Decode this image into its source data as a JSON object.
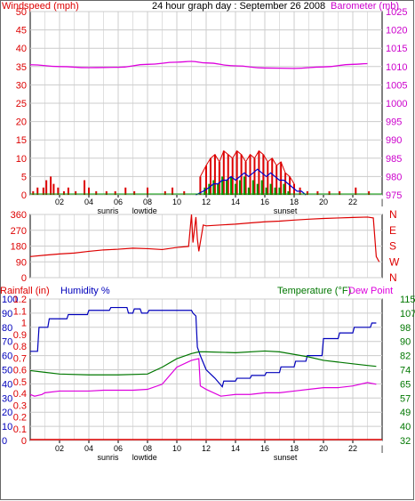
{
  "header": {
    "left_label": "Windspeed (mph)",
    "title": "24 hour graph day : September 26 2008",
    "right_label": "Barometer (mb)"
  },
  "colors": {
    "wind": "#dd0000",
    "gust": "#0000cc",
    "sun": "#009900",
    "baro": "#dd00dd",
    "temp": "#007700",
    "dew": "#dd00dd",
    "hum": "#0000bb",
    "grid": "#cccccc",
    "axis_left": "#dd0000",
    "axis_right": "#cc00cc"
  },
  "x_axis": {
    "ticks": [
      "02",
      "04",
      "06",
      "08",
      "10",
      "12",
      "14",
      "16",
      "18",
      "20",
      "22"
    ],
    "top_markers": [
      "sunris",
      "lowtide",
      "sunset"
    ],
    "bottom_markers": [
      "sunris",
      "lowtide",
      "sunset"
    ]
  },
  "chart_data": [
    {
      "type": "bar",
      "title": "24 hour graph day : September 26 2008",
      "xlabel": "",
      "ylabel": "Windspeed (mph)",
      "y2label": "Barometer (mb)",
      "ylim": [
        0,
        50
      ],
      "y2lim": [
        975,
        1025
      ],
      "yticks": [
        "0",
        "5",
        "10",
        "15",
        "20",
        "25",
        "30",
        "35",
        "40",
        "45",
        "50"
      ],
      "y2ticks": [
        "975",
        "980",
        "985",
        "990",
        "995",
        "1000",
        "1005",
        "1010",
        "1015",
        "1020",
        "1025"
      ],
      "x_hours": [
        0,
        24
      ],
      "series": [
        {
          "name": "Windspeed (mph)",
          "type": "bar",
          "points": [
            [
              0.2,
              1
            ],
            [
              0.5,
              2
            ],
            [
              0.9,
              2
            ],
            [
              1.1,
              4
            ],
            [
              1.4,
              5
            ],
            [
              1.6,
              3
            ],
            [
              1.9,
              2
            ],
            [
              2.3,
              1
            ],
            [
              2.6,
              2
            ],
            [
              3.1,
              1
            ],
            [
              3.7,
              4
            ],
            [
              4.0,
              2
            ],
            [
              4.5,
              1
            ],
            [
              5.2,
              1
            ],
            [
              5.8,
              1
            ],
            [
              6.5,
              2
            ],
            [
              7.1,
              1
            ],
            [
              8.0,
              2
            ],
            [
              9.2,
              1
            ],
            [
              9.7,
              2
            ],
            [
              10.5,
              1
            ],
            [
              11.6,
              5
            ],
            [
              12.0,
              8
            ],
            [
              12.3,
              10
            ],
            [
              12.6,
              11
            ],
            [
              12.9,
              9
            ],
            [
              13.2,
              12
            ],
            [
              13.5,
              11
            ],
            [
              13.8,
              10
            ],
            [
              14.1,
              12
            ],
            [
              14.4,
              11
            ],
            [
              14.7,
              9
            ],
            [
              15.0,
              11
            ],
            [
              15.3,
              10
            ],
            [
              15.6,
              12
            ],
            [
              15.9,
              11
            ],
            [
              16.2,
              9
            ],
            [
              16.5,
              10
            ],
            [
              16.8,
              8
            ],
            [
              17.1,
              9
            ],
            [
              17.4,
              6
            ],
            [
              17.7,
              5
            ],
            [
              18.0,
              3
            ],
            [
              18.4,
              2
            ],
            [
              18.9,
              1
            ],
            [
              19.6,
              1
            ],
            [
              20.4,
              1
            ],
            [
              21.1,
              1
            ],
            [
              22.2,
              2
            ],
            [
              23.1,
              1
            ]
          ]
        },
        {
          "name": "Gust",
          "type": "line",
          "points": [
            [
              11.3,
              0
            ],
            [
              11.8,
              1
            ],
            [
              12.2,
              2
            ],
            [
              12.5,
              3
            ],
            [
              12.8,
              3
            ],
            [
              13.1,
              4
            ],
            [
              13.4,
              4
            ],
            [
              13.7,
              5
            ],
            [
              14.0,
              4
            ],
            [
              14.3,
              5
            ],
            [
              14.6,
              6
            ],
            [
              14.9,
              5
            ],
            [
              15.2,
              6
            ],
            [
              15.5,
              7
            ],
            [
              15.8,
              6
            ],
            [
              16.1,
              5
            ],
            [
              16.4,
              6
            ],
            [
              16.7,
              5
            ],
            [
              17.0,
              4
            ],
            [
              17.3,
              4
            ],
            [
              17.6,
              3
            ],
            [
              17.9,
              2
            ],
            [
              18.2,
              1
            ],
            [
              18.5,
              1
            ],
            [
              18.8,
              0
            ]
          ]
        },
        {
          "name": "Sun",
          "type": "bar",
          "points": [
            [
              11.9,
              2
            ],
            [
              12.2,
              3
            ],
            [
              12.5,
              4
            ],
            [
              12.8,
              3
            ],
            [
              13.1,
              5
            ],
            [
              13.4,
              4
            ],
            [
              13.7,
              5
            ],
            [
              14.0,
              3
            ],
            [
              14.3,
              4
            ],
            [
              14.6,
              5
            ],
            [
              14.9,
              2
            ],
            [
              15.2,
              4
            ],
            [
              15.5,
              3
            ],
            [
              15.8,
              4
            ],
            [
              16.1,
              2
            ],
            [
              16.4,
              3
            ],
            [
              16.7,
              2
            ],
            [
              17.0,
              2
            ],
            [
              17.3,
              3
            ],
            [
              17.6,
              1
            ]
          ]
        },
        {
          "name": "Barometer (mb)",
          "type": "line",
          "points": [
            [
              0,
              1010.5
            ],
            [
              2,
              1010
            ],
            [
              4,
              1009.7
            ],
            [
              6,
              1009.8
            ],
            [
              8,
              1010.6
            ],
            [
              10,
              1011.2
            ],
            [
              11,
              1011.4
            ],
            [
              12,
              1011
            ],
            [
              14,
              1010.2
            ],
            [
              16,
              1009.6
            ],
            [
              18,
              1009.5
            ],
            [
              20,
              1009.9
            ],
            [
              22,
              1010.6
            ],
            [
              23,
              1010.8
            ]
          ]
        }
      ]
    },
    {
      "type": "line",
      "title": "",
      "xlabel": "",
      "ylabel": "",
      "ylim": [
        0,
        360
      ],
      "yticks": [
        "0",
        "90",
        "180",
        "270",
        "360"
      ],
      "y2ticks": [
        "N",
        "W",
        "S",
        "E",
        "N"
      ],
      "x_hours": [
        0,
        24
      ],
      "series": [
        {
          "name": "",
          "points": [
            [
              0,
              120
            ],
            [
              1,
              128
            ],
            [
              2,
              135
            ],
            [
              3,
              140
            ],
            [
              4,
              150
            ],
            [
              5,
              158
            ],
            [
              6,
              162
            ],
            [
              7,
              168
            ],
            [
              8,
              165
            ],
            [
              9,
              160
            ],
            [
              10,
              172
            ],
            [
              10.8,
              178
            ],
            [
              11.0,
              380
            ],
            [
              11.1,
              200
            ],
            [
              11.3,
              345
            ],
            [
              11.4,
              220
            ],
            [
              11.5,
              150
            ],
            [
              11.8,
              300
            ],
            [
              12,
              295
            ],
            [
              13,
              300
            ],
            [
              14,
              305
            ],
            [
              15,
              312
            ],
            [
              16,
              318
            ],
            [
              17,
              322
            ],
            [
              18,
              328
            ],
            [
              19,
              333
            ],
            [
              20,
              337
            ],
            [
              21,
              340
            ],
            [
              22,
              343
            ],
            [
              23,
              345
            ],
            [
              23.4,
              340
            ],
            [
              23.6,
              120
            ],
            [
              23.8,
              90
            ]
          ]
        }
      ]
    },
    {
      "type": "line",
      "title": "",
      "xlabel": "",
      "ylabel": "Humidity %",
      "y_left_outer_label": "Rainfall (in)",
      "y2label": "Temperature (°F)",
      "y3label": "Dew Point",
      "rain_ticks": [
        "0",
        "0.1",
        "0.2",
        "0.3",
        "0.4",
        "0.5",
        "0.6",
        "0.7",
        "0.8",
        "0.9",
        "1",
        "1.1",
        "1.2"
      ],
      "hum_ticks": [
        "0",
        "10",
        "20",
        "30",
        "40",
        "50",
        "60",
        "70",
        "80",
        "90",
        "100"
      ],
      "temp_ticks": [
        "32",
        "40",
        "49",
        "57",
        "65",
        "74",
        "82",
        "90",
        "98",
        "107",
        "115"
      ],
      "ylim_humidity": [
        0,
        100
      ],
      "ylim_temperature": [
        32,
        115
      ],
      "x_hours": [
        0,
        24
      ],
      "series": [
        {
          "name": "Humidity %",
          "points": [
            [
              0,
              63
            ],
            [
              0.5,
              63
            ],
            [
              0.6,
              80
            ],
            [
              1.2,
              80
            ],
            [
              1.3,
              86
            ],
            [
              2.5,
              86
            ],
            [
              2.6,
              89
            ],
            [
              3.9,
              89
            ],
            [
              4.0,
              92
            ],
            [
              5.4,
              92
            ],
            [
              5.5,
              94
            ],
            [
              6.6,
              94
            ],
            [
              6.7,
              90
            ],
            [
              7.0,
              90
            ],
            [
              7.1,
              93
            ],
            [
              7.5,
              93
            ],
            [
              7.6,
              90
            ],
            [
              8.0,
              90
            ],
            [
              8.1,
              92
            ],
            [
              11.0,
              92
            ],
            [
              11.1,
              90
            ],
            [
              11.3,
              88
            ],
            [
              11.4,
              66
            ],
            [
              11.6,
              60
            ],
            [
              12.0,
              50
            ],
            [
              12.6,
              44
            ],
            [
              13.1,
              38
            ],
            [
              13.2,
              42
            ],
            [
              14.0,
              42
            ],
            [
              14.1,
              44
            ],
            [
              15.0,
              44
            ],
            [
              15.1,
              46
            ],
            [
              16.0,
              46
            ],
            [
              16.1,
              48
            ],
            [
              17.0,
              48
            ],
            [
              17.1,
              52
            ],
            [
              18.0,
              52
            ],
            [
              18.1,
              56
            ],
            [
              18.8,
              56
            ],
            [
              18.9,
              60
            ],
            [
              19.9,
              60
            ],
            [
              20.0,
              72
            ],
            [
              21.0,
              72
            ],
            [
              21.1,
              76
            ],
            [
              22.0,
              76
            ],
            [
              22.1,
              80
            ],
            [
              23.2,
              80
            ],
            [
              23.3,
              83
            ],
            [
              23.6,
              83
            ]
          ]
        },
        {
          "name": "Temperature (°F)",
          "points": [
            [
              0,
              73
            ],
            [
              1,
              72
            ],
            [
              2,
              71
            ],
            [
              4,
              70.5
            ],
            [
              6,
              70.5
            ],
            [
              8,
              71
            ],
            [
              9,
              75
            ],
            [
              10,
              80
            ],
            [
              11,
              83
            ],
            [
              11.5,
              84
            ],
            [
              12,
              84
            ],
            [
              14,
              83.5
            ],
            [
              16,
              84.5
            ],
            [
              17,
              84
            ],
            [
              18,
              82.5
            ],
            [
              19,
              81
            ],
            [
              20,
              79
            ],
            [
              21,
              78
            ],
            [
              22,
              77
            ],
            [
              23,
              76
            ],
            [
              23.6,
              75.5
            ]
          ]
        },
        {
          "name": "Dew Point",
          "points": [
            [
              0,
              59
            ],
            [
              0.3,
              58
            ],
            [
              0.8,
              59
            ],
            [
              1,
              60
            ],
            [
              2,
              61
            ],
            [
              3,
              61
            ],
            [
              4,
              61
            ],
            [
              5,
              61.5
            ],
            [
              6,
              61.5
            ],
            [
              7,
              61.5
            ],
            [
              8,
              62
            ],
            [
              9,
              65
            ],
            [
              10,
              75
            ],
            [
              11,
              79
            ],
            [
              11.5,
              80
            ],
            [
              11.6,
              64
            ],
            [
              12,
              62
            ],
            [
              13,
              58
            ],
            [
              14,
              59
            ],
            [
              15,
              59
            ],
            [
              16,
              60
            ],
            [
              17,
              60
            ],
            [
              18,
              61
            ],
            [
              19,
              62
            ],
            [
              20,
              63
            ],
            [
              21,
              63
            ],
            [
              22,
              64
            ],
            [
              23,
              66
            ],
            [
              23.6,
              65
            ]
          ]
        },
        {
          "name": "Rainfall (in)",
          "points": [
            [
              0,
              0
            ],
            [
              24,
              0
            ]
          ]
        }
      ]
    }
  ]
}
